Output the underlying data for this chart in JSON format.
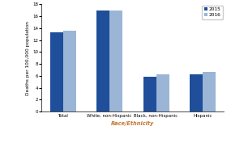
{
  "categories": [
    "Total",
    "White, non-Hispanic",
    "Black, non-Hispanic",
    "Hispanic"
  ],
  "values_2015": [
    13.3,
    17.0,
    5.8,
    6.2
  ],
  "values_2016": [
    13.5,
    17.0,
    6.3,
    6.7
  ],
  "color_2015": "#1F4E9A",
  "color_2016": "#9BB5D6",
  "ylabel": "Deaths per 100,000 population",
  "xlabel": "Race/Ethnicity",
  "ylim": [
    0,
    18
  ],
  "yticks": [
    0,
    2,
    4,
    6,
    8,
    10,
    12,
    14,
    16,
    18
  ],
  "legend_labels": [
    "2015",
    "2016"
  ],
  "bar_width": 0.28
}
